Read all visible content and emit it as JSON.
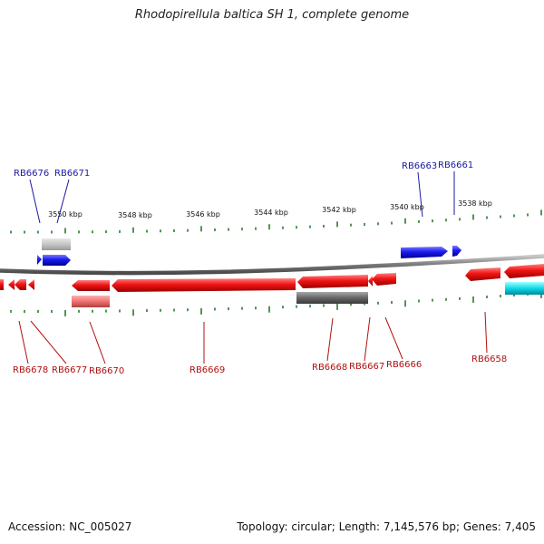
{
  "title": "Rhodopirellula baltica SH 1, complete genome",
  "accession": "Accession: NC_005027",
  "summary": "Topology: circular; Length: 7,145,576 bp; Genes: 7,405",
  "colors": {
    "forward_gene": "#1515ee",
    "reverse_gene": "#ee1515",
    "backbone": "#808080",
    "tick": "#2a7a2a",
    "forward_label": "#1a1aa0",
    "reverse_label": "#b01010",
    "gray_feature": "#6b6b6b",
    "cyan_feature": "#10d8e8"
  },
  "kbp_labels": [
    "3550 kbp",
    "3548 kbp",
    "3546 kbp",
    "3544 kbp",
    "3542 kbp",
    "3540 kbp",
    "3538 kbp"
  ],
  "top_genes": [
    {
      "label": "RB6676"
    },
    {
      "label": "RB6671"
    },
    {
      "label": "RB6663"
    },
    {
      "label": "RB6661"
    }
  ],
  "bottom_genes": [
    {
      "label": "RB6678"
    },
    {
      "label": "RB6677"
    },
    {
      "label": "RB6670"
    },
    {
      "label": "RB6669"
    },
    {
      "label": "RB6668"
    },
    {
      "label": "RB6667"
    },
    {
      "label": "RB6666"
    },
    {
      "label": "RB6658"
    }
  ]
}
